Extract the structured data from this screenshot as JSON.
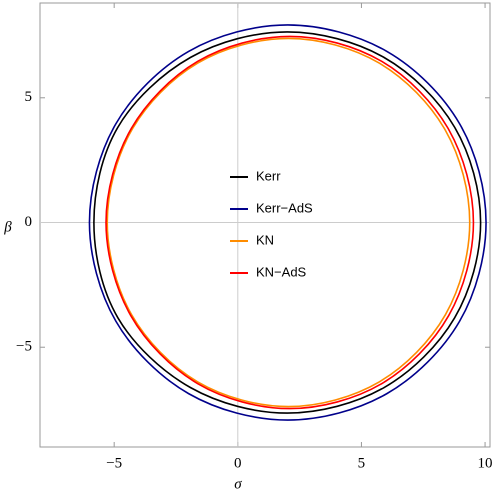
{
  "chart_data": {
    "type": "parametric",
    "x_label": "σ",
    "y_label": "β",
    "xlim": [
      -8,
      10.2
    ],
    "ylim": [
      -9,
      8.8
    ],
    "xticks": [
      {
        "value": -5,
        "label": "−5"
      },
      0,
      5,
      10
    ],
    "yticks": [
      {
        "value": -5,
        "label": "−5"
      },
      0,
      5
    ],
    "grid": "origin",
    "legend": "center",
    "series": [
      {
        "name": "Kerr",
        "color": "#000000",
        "x": [
          9.82,
          8.77,
          5.91,
          2,
          -1.91,
          -4.85,
          -5.82,
          -4.85,
          -1.91,
          2,
          5.91,
          8.77
        ],
        "y": [
          0,
          3.82,
          6.62,
          7.64,
          6.62,
          3.82,
          0,
          -3.82,
          -6.62,
          -7.64,
          -6.62,
          -3.82
        ]
      },
      {
        "name": "Kerr−AdS",
        "color": "#00008b",
        "x": [
          10.04,
          8.97,
          6.03,
          2.02,
          -1.99,
          -4.93,
          -6.0,
          -4.93,
          -1.99,
          2.02,
          6.03,
          8.97
        ],
        "y": [
          0,
          3.96,
          6.86,
          7.92,
          6.86,
          3.96,
          0,
          -3.96,
          -6.86,
          -7.92,
          -6.86,
          -3.96
        ]
      },
      {
        "name": "KN",
        "color": "#ff8c00",
        "x": [
          9.38,
          8.4,
          5.72,
          2.05,
          -1.62,
          -4.3,
          -5.28,
          -4.3,
          -1.62,
          2.05,
          5.72,
          8.4
        ],
        "y": [
          0,
          3.69,
          6.39,
          7.38,
          6.39,
          3.69,
          0,
          -3.69,
          -6.39,
          -7.38,
          -6.39,
          -3.69
        ]
      },
      {
        "name": "KN−AdS",
        "color": "#ff0000",
        "x": [
          9.53,
          8.53,
          5.82,
          2.1,
          -1.62,
          -4.33,
          -5.33,
          -4.33,
          -1.62,
          2.1,
          5.82,
          8.53
        ],
        "y": [
          0,
          3.73,
          6.46,
          7.46,
          6.46,
          3.73,
          0,
          -3.73,
          -6.46,
          -7.46,
          -6.46,
          -3.73
        ]
      }
    ]
  }
}
